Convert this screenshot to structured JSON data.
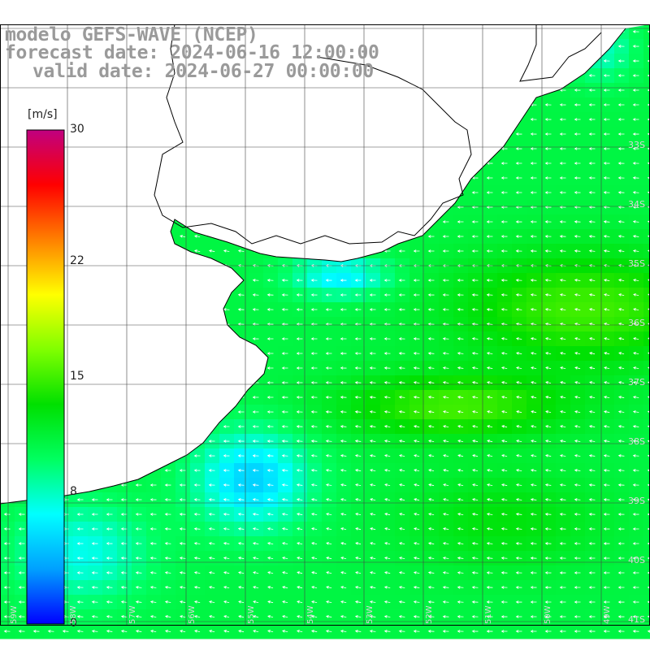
{
  "header": {
    "title": "modelo GEFS-WAVE (NCEP)",
    "forecast_date": "forecast date: 2024-06-16 12:00:00",
    "valid_date": "valid date: 2024-06-27 00:00:00"
  },
  "colorbar": {
    "unit": "[m/s]",
    "ticks": [
      {
        "value": 30,
        "label": "30"
      },
      {
        "value": 22,
        "label": "22"
      },
      {
        "value": 15,
        "label": "15"
      },
      {
        "value": 8,
        "label": "8"
      },
      {
        "value": 0,
        "label": "0"
      }
    ],
    "min": 0,
    "max": 30,
    "stops": [
      "#0000ff",
      "#00a0ff",
      "#00ffff",
      "#00ff60",
      "#00e000",
      "#80ff00",
      "#ffff00",
      "#ff8000",
      "#ff0000",
      "#c00080"
    ]
  },
  "map": {
    "lat_labels": [
      "33S",
      "34S",
      "35S",
      "36S",
      "37S",
      "38S",
      "39S",
      "40S",
      "41S"
    ],
    "lon_labels": [
      "59W",
      "58W",
      "57W",
      "56W",
      "55W",
      "54W",
      "53W",
      "52W",
      "51W",
      "50W",
      "49W"
    ],
    "colors": {
      "land": "#ffffff",
      "coast": "#000000",
      "grid": "#444444",
      "arrow": "#ffffff"
    }
  }
}
